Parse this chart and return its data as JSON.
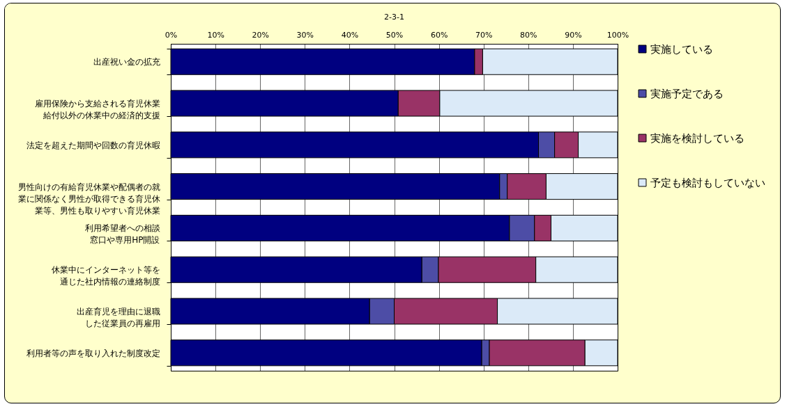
{
  "chart_data": {
    "type": "bar",
    "title": "2-3-1",
    "orientation": "horizontal",
    "stacked": true,
    "categories": [
      "出産祝い金の拡充",
      "雇用保険から支給される育児休業給付以外の休業中の経済的支援",
      "法定を超えた期間や回数の育児休暇",
      "男性向けの有給育児休業や配偶者の就業に関係なく男性が取得できる育児休業等、男性も取りやすい育児休業",
      "利用希望者への相談窓口や専用HP開設",
      "休業中にインターネット等を通じた社内情報の連絡制度",
      "出産育児を理由に退職した従業員の再雇用",
      "利用者等の声を取り入れた制度改定"
    ],
    "series": [
      {
        "name": "実施している",
        "color": "#000080",
        "values": [
          68.0,
          50.9,
          82.3,
          73.6,
          75.8,
          56.2,
          44.5,
          69.6
        ]
      },
      {
        "name": "実施予定である",
        "color": "#4d4da6",
        "values": [
          0,
          0,
          3.6,
          1.7,
          5.6,
          3.7,
          5.5,
          1.7
        ]
      },
      {
        "name": "実施を検討している",
        "color": "#993366",
        "values": [
          1.8,
          9.3,
          5.3,
          8.7,
          3.7,
          21.8,
          23.1,
          21.4
        ]
      },
      {
        "name": "予定も検討もしていない",
        "color": "#dbeaf8",
        "values": [
          30.2,
          39.8,
          8.8,
          16.0,
          14.9,
          18.3,
          26.9,
          7.3
        ]
      }
    ],
    "xlim": [
      0,
      100
    ],
    "xticks": [
      {
        "value": 0,
        "label": "0%"
      },
      {
        "value": 10,
        "label": "10%"
      },
      {
        "value": 20,
        "label": "20%"
      },
      {
        "value": 30,
        "label": "30%"
      },
      {
        "value": 40,
        "label": "40%"
      },
      {
        "value": 50,
        "label": "50%"
      },
      {
        "value": 60,
        "label": "60%"
      },
      {
        "value": 70,
        "label": "70%"
      },
      {
        "value": 80,
        "label": "80%"
      },
      {
        "value": 90,
        "label": "90%"
      },
      {
        "value": 100,
        "label": "100%"
      }
    ],
    "grid": "x",
    "legend": "right"
  }
}
